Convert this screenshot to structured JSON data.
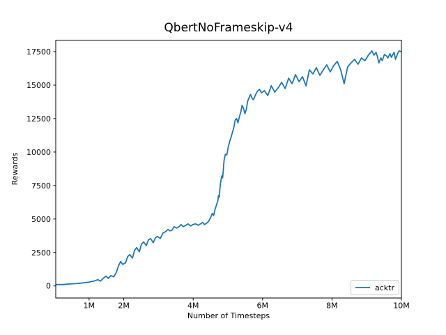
{
  "chart_data": {
    "type": "line",
    "title": "QbertNoFrameskip-v4",
    "xlabel": "Number of Timesteps",
    "ylabel": "Rewards",
    "grid": false,
    "xlim": [
      0.04,
      10.0
    ],
    "ylim": [
      -900,
      18360
    ],
    "x_unit": "millions of timesteps",
    "xticks": [
      {
        "value": 1,
        "label": "1M"
      },
      {
        "value": 2,
        "label": "2M"
      },
      {
        "value": 4,
        "label": "4M"
      },
      {
        "value": 6,
        "label": "6M"
      },
      {
        "value": 8,
        "label": "8M"
      },
      {
        "value": 10,
        "label": "10M"
      }
    ],
    "yticks": [
      {
        "value": 0,
        "label": "0"
      },
      {
        "value": 2500,
        "label": "2500"
      },
      {
        "value": 5000,
        "label": "5000"
      },
      {
        "value": 7500,
        "label": "7500"
      },
      {
        "value": 10000,
        "label": "10000"
      },
      {
        "value": 12500,
        "label": "12500"
      },
      {
        "value": 15000,
        "label": "15000"
      },
      {
        "value": 17500,
        "label": "17500"
      }
    ],
    "legend": {
      "position": "lower right",
      "entries": [
        {
          "label": "acktr",
          "color": "#1f77b4"
        }
      ]
    },
    "series": [
      {
        "name": "acktr",
        "color": "#1f77b4",
        "points": [
          [
            0.06,
            105
          ],
          [
            0.16,
            110
          ],
          [
            0.26,
            105
          ],
          [
            0.36,
            130
          ],
          [
            0.46,
            155
          ],
          [
            0.56,
            170
          ],
          [
            0.66,
            185
          ],
          [
            0.76,
            210
          ],
          [
            0.86,
            240
          ],
          [
            0.93,
            260
          ],
          [
            1.0,
            285
          ],
          [
            1.07,
            330
          ],
          [
            1.14,
            365
          ],
          [
            1.2,
            420
          ],
          [
            1.25,
            470
          ],
          [
            1.33,
            365
          ],
          [
            1.41,
            575
          ],
          [
            1.49,
            730
          ],
          [
            1.55,
            575
          ],
          [
            1.63,
            780
          ],
          [
            1.71,
            675
          ],
          [
            1.79,
            1040
          ],
          [
            1.85,
            1510
          ],
          [
            1.91,
            1825
          ],
          [
            1.97,
            1615
          ],
          [
            2.05,
            1720
          ],
          [
            2.11,
            2185
          ],
          [
            2.17,
            2345
          ],
          [
            2.25,
            2085
          ],
          [
            2.31,
            2655
          ],
          [
            2.37,
            2865
          ],
          [
            2.45,
            2550
          ],
          [
            2.51,
            3125
          ],
          [
            2.57,
            3280
          ],
          [
            2.65,
            3020
          ],
          [
            2.71,
            3440
          ],
          [
            2.77,
            3540
          ],
          [
            2.85,
            3230
          ],
          [
            2.91,
            3595
          ],
          [
            2.97,
            3700
          ],
          [
            3.05,
            3540
          ],
          [
            3.13,
            3960
          ],
          [
            3.21,
            4060
          ],
          [
            3.27,
            4220
          ],
          [
            3.33,
            4115
          ],
          [
            3.39,
            4165
          ],
          [
            3.45,
            4425
          ],
          [
            3.53,
            4325
          ],
          [
            3.59,
            4425
          ],
          [
            3.65,
            4585
          ],
          [
            3.71,
            4425
          ],
          [
            3.79,
            4530
          ],
          [
            3.85,
            4635
          ],
          [
            3.93,
            4480
          ],
          [
            3.99,
            4585
          ],
          [
            4.07,
            4635
          ],
          [
            4.15,
            4530
          ],
          [
            4.21,
            4635
          ],
          [
            4.27,
            4740
          ],
          [
            4.33,
            4585
          ],
          [
            4.39,
            4690
          ],
          [
            4.45,
            4845
          ],
          [
            4.51,
            5155
          ],
          [
            4.55,
            5415
          ],
          [
            4.59,
            5260
          ],
          [
            4.63,
            5730
          ],
          [
            4.67,
            6040
          ],
          [
            4.71,
            6355
          ],
          [
            4.73,
            6770
          ],
          [
            4.75,
            6615
          ],
          [
            4.77,
            7290
          ],
          [
            4.79,
            7710
          ],
          [
            4.81,
            8020
          ],
          [
            4.83,
            8230
          ],
          [
            4.85,
            8075
          ],
          [
            4.87,
            8700
          ],
          [
            4.89,
            9375
          ],
          [
            4.91,
            9635
          ],
          [
            4.93,
            9845
          ],
          [
            4.97,
            9790
          ],
          [
            5.01,
            10365
          ],
          [
            5.05,
            10780
          ],
          [
            5.09,
            11095
          ],
          [
            5.13,
            11460
          ],
          [
            5.17,
            11825
          ],
          [
            5.21,
            12395
          ],
          [
            5.25,
            12500
          ],
          [
            5.29,
            12185
          ],
          [
            5.33,
            12605
          ],
          [
            5.37,
            12970
          ],
          [
            5.41,
            13490
          ],
          [
            5.45,
            13280
          ],
          [
            5.49,
            12865
          ],
          [
            5.53,
            13175
          ],
          [
            5.57,
            13800
          ],
          [
            5.61,
            14060
          ],
          [
            5.65,
            14300
          ],
          [
            5.69,
            14050
          ],
          [
            5.73,
            13905
          ],
          [
            5.77,
            14100
          ],
          [
            5.81,
            14350
          ],
          [
            5.85,
            14530
          ],
          [
            5.91,
            14690
          ],
          [
            5.97,
            14425
          ],
          [
            6.05,
            14585
          ],
          [
            6.15,
            14220
          ],
          [
            6.25,
            14950
          ],
          [
            6.35,
            14480
          ],
          [
            6.45,
            14800
          ],
          [
            6.55,
            15210
          ],
          [
            6.65,
            14740
          ],
          [
            6.75,
            15520
          ],
          [
            6.85,
            15105
          ],
          [
            6.95,
            15780
          ],
          [
            7.05,
            15260
          ],
          [
            7.15,
            15625
          ],
          [
            7.25,
            14950
          ],
          [
            7.35,
            16145
          ],
          [
            7.45,
            15835
          ],
          [
            7.55,
            16300
          ],
          [
            7.65,
            15730
          ],
          [
            7.75,
            16145
          ],
          [
            7.85,
            16510
          ],
          [
            7.95,
            15990
          ],
          [
            8.05,
            16460
          ],
          [
            8.15,
            16770
          ],
          [
            8.25,
            16145
          ],
          [
            8.35,
            15105
          ],
          [
            8.45,
            16355
          ],
          [
            8.55,
            16665
          ],
          [
            8.65,
            16925
          ],
          [
            8.75,
            16560
          ],
          [
            8.85,
            17030
          ],
          [
            8.95,
            16825
          ],
          [
            9.05,
            17240
          ],
          [
            9.15,
            17550
          ],
          [
            9.21,
            17240
          ],
          [
            9.27,
            17450
          ],
          [
            9.31,
            17135
          ],
          [
            9.35,
            16665
          ],
          [
            9.41,
            17030
          ],
          [
            9.45,
            16825
          ],
          [
            9.51,
            17290
          ],
          [
            9.57,
            17185
          ],
          [
            9.61,
            17030
          ],
          [
            9.67,
            17345
          ],
          [
            9.71,
            17085
          ],
          [
            9.79,
            17450
          ],
          [
            9.83,
            16925
          ],
          [
            9.89,
            17345
          ],
          [
            9.93,
            17550
          ],
          [
            9.99,
            17500
          ]
        ]
      }
    ]
  }
}
